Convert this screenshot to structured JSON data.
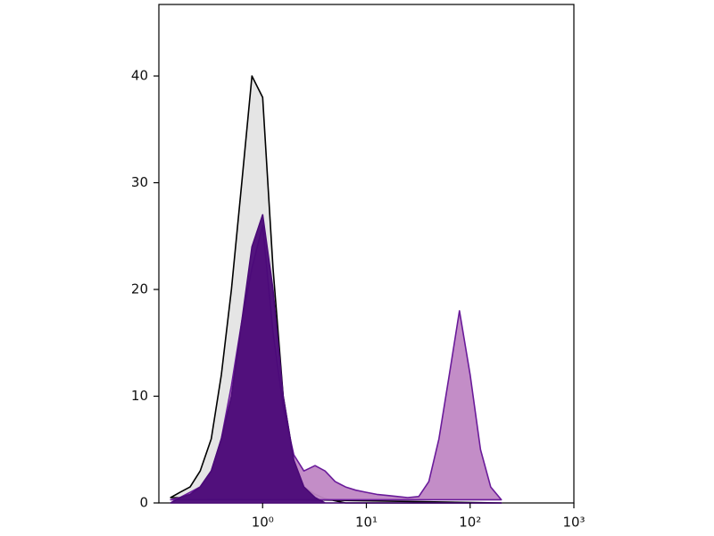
{
  "chart_data": {
    "type": "histogram-overlay",
    "x": [
      0.13,
      0.16,
      0.2,
      0.25,
      0.32,
      0.4,
      0.5,
      0.63,
      0.79,
      1,
      1.26,
      1.58,
      2,
      2.5,
      3.2,
      4,
      5,
      6.3,
      7.9,
      10,
      12.6,
      15.8,
      20,
      25,
      32,
      40,
      50,
      63,
      79,
      100,
      126,
      158,
      200
    ],
    "x_log": true,
    "xlim": [
      0.1,
      1000
    ],
    "xticks": [
      {
        "value": 1,
        "label": "10⁰"
      },
      {
        "value": 10,
        "label": "10¹"
      },
      {
        "value": 100,
        "label": "10²"
      },
      {
        "value": 1000,
        "label": "10³"
      }
    ],
    "ylim": [
      0,
      46.7
    ],
    "yticks": [
      0,
      10,
      20,
      30,
      40
    ],
    "series": [
      {
        "color": "#000000",
        "fill": "#e4e4e4",
        "values": [
          0.5,
          1,
          1.5,
          3,
          6,
          12,
          20,
          30,
          40,
          38,
          22,
          10,
          4,
          1.5,
          0.8,
          0.4,
          0.2,
          0,
          0,
          0,
          0,
          0,
          0,
          0,
          0,
          0,
          0,
          0,
          0,
          0,
          0,
          0,
          0
        ]
      },
      {
        "color": "#6a1b9a",
        "fill": "#c087c4",
        "values": [
          0.3,
          0.5,
          1,
          1.5,
          3,
          6,
          11,
          17,
          22,
          26,
          16,
          9,
          4.5,
          3,
          3.5,
          3,
          2,
          1.5,
          1.2,
          1,
          0.8,
          0.7,
          0.6,
          0.5,
          0.6,
          2,
          6,
          12,
          18,
          12,
          5,
          1.5,
          0.3
        ]
      },
      {
        "color": "#4b0a78",
        "fill": "#4b0a78",
        "values": [
          0,
          0.5,
          0.8,
          1.5,
          3,
          6,
          10,
          17,
          24,
          27,
          20,
          10,
          4,
          1.5,
          0.5,
          0,
          0,
          0,
          0,
          0,
          0,
          0,
          0,
          0,
          0,
          0,
          0,
          0,
          0,
          0,
          0,
          0,
          0
        ]
      }
    ]
  }
}
